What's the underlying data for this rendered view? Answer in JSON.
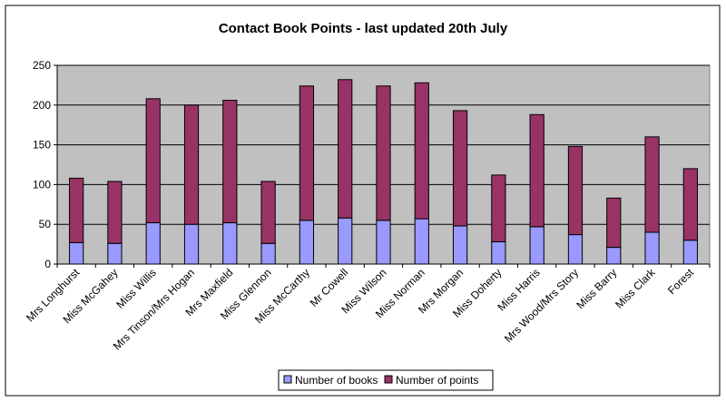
{
  "chart_data": {
    "type": "bar",
    "stacked": true,
    "title": "Contact Book Points - last updated 20th July",
    "xlabel": "",
    "ylabel": "",
    "ylim": [
      0,
      250
    ],
    "yticks": [
      0,
      50,
      100,
      150,
      200,
      250
    ],
    "grid": true,
    "legend_position": "bottom",
    "categories": [
      "Mrs Longhurst",
      "Miss McGahey",
      "Miss Willis",
      "Mrs Tinson/Mrs Hogan",
      "Mrs Maxfield",
      "Miss Glennon",
      "Miss McCarthy",
      "Mr Cowell",
      "Miss Wilson",
      "Miss Norman",
      "Mrs Morgan",
      "Miss Doherty",
      "Miss Harris",
      "Mrs Wood/Mrs Story",
      "Miss Barry",
      "Miss Clark",
      "Forest"
    ],
    "series": [
      {
        "name": "Number of books",
        "color": "#9999ff",
        "values": [
          27,
          26,
          52,
          50,
          52,
          26,
          55,
          58,
          55,
          57,
          48,
          28,
          47,
          37,
          21,
          40,
          30
        ]
      },
      {
        "name": "Number of points",
        "color": "#993366",
        "values": [
          81,
          78,
          156,
          150,
          154,
          78,
          169,
          174,
          169,
          171,
          145,
          84,
          141,
          111,
          62,
          120,
          90
        ]
      }
    ],
    "colors": {
      "plot_background": "#c0c0c0",
      "gridline": "#000000",
      "bar_outline": "#000000"
    }
  }
}
